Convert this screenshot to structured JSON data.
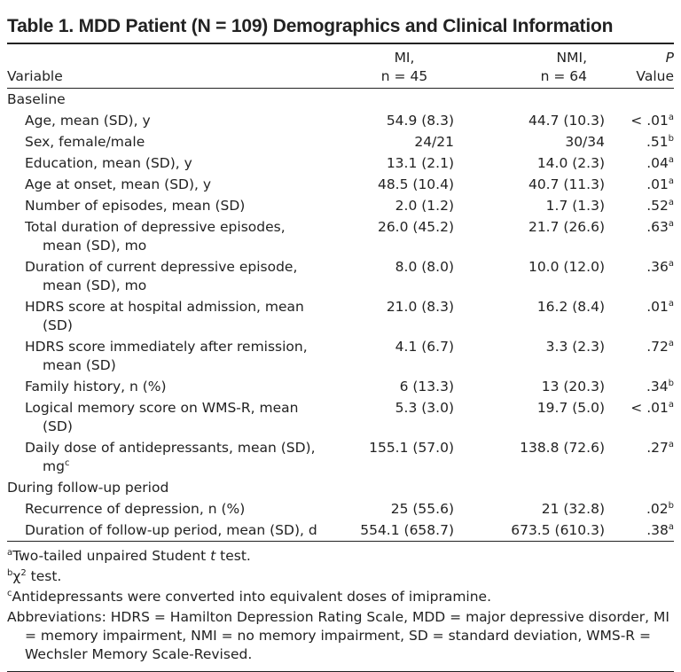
{
  "table": {
    "title": "Table 1. MDD Patient (N = 109) Demographics and Clinical Information",
    "header": {
      "variable": "Variable",
      "columns": [
        [
          "MI,",
          "n = 45"
        ],
        [
          "NMI,",
          "n = 64"
        ],
        [
          "P",
          "Value"
        ]
      ]
    },
    "sections": [
      {
        "label": "Baseline",
        "rows": [
          {
            "variable": "Age, mean (SD), y",
            "mi": "54.9 (8.3)",
            "nmi": "44.7 (10.3)",
            "p": "< .01",
            "p_note": "a"
          },
          {
            "variable": "Sex, female/male",
            "mi": "24/21",
            "nmi": "30/34",
            "p": ".51",
            "p_note": "b"
          },
          {
            "variable": "Education, mean (SD), y",
            "mi": "13.1 (2.1)",
            "nmi": "14.0 (2.3)",
            "p": ".04",
            "p_note": "a"
          },
          {
            "variable": "Age at onset, mean (SD), y",
            "mi": "48.5 (10.4)",
            "nmi": "40.7 (11.3)",
            "p": ".01",
            "p_note": "a"
          },
          {
            "variable": "Number of episodes, mean (SD)",
            "mi": "2.0 (1.2)",
            "nmi": "1.7 (1.3)",
            "p": ".52",
            "p_note": "a"
          },
          {
            "variable": "Total duration of depressive episodes, mean (SD), mo",
            "mi": "26.0 (45.2)",
            "nmi": "21.7 (26.6)",
            "p": ".63",
            "p_note": "a"
          },
          {
            "variable": "Duration of current depressive episode, mean (SD), mo",
            "mi": "8.0 (8.0)",
            "nmi": "10.0 (12.0)",
            "p": ".36",
            "p_note": "a"
          },
          {
            "variable": "HDRS score at hospital admission, mean (SD)",
            "mi": "21.0 (8.3)",
            "nmi": "16.2 (8.4)",
            "p": ".01",
            "p_note": "a"
          },
          {
            "variable": "HDRS score immediately after remission, mean (SD)",
            "mi": "4.1 (6.7)",
            "nmi": "3.3 (2.3)",
            "p": ".72",
            "p_note": "a"
          },
          {
            "variable": "Family history, n (%)",
            "mi": "6 (13.3)",
            "nmi": "13 (20.3)",
            "p": ".34",
            "p_note": "b"
          },
          {
            "variable": "Logical memory score on WMS-R, mean (SD)",
            "mi": "5.3 (3.0)",
            "nmi": "19.7 (5.0)",
            "p": "< .01",
            "p_note": "a"
          },
          {
            "variable": "Daily dose of antidepressants, mean (SD), mg",
            "variable_note": "c",
            "mi": "155.1 (57.0)",
            "nmi": "138.8 (72.6)",
            "p": ".27",
            "p_note": "a"
          }
        ]
      },
      {
        "label": "During follow-up period",
        "rows": [
          {
            "variable": "Recurrence of depression, n (%)",
            "mi": "25 (55.6)",
            "nmi": "21 (32.8)",
            "p": ".02",
            "p_note": "b"
          },
          {
            "variable": "Duration of follow-up period, mean (SD), d",
            "mi": "554.1 (658.7)",
            "nmi": "673.5 (610.3)",
            "p": ".38",
            "p_note": "a"
          }
        ]
      }
    ],
    "notes": [
      {
        "mark": "a",
        "text": [
          "Two-tailed unpaired Student ",
          "t",
          " test."
        ]
      },
      {
        "mark": "b",
        "text": [
          "χ",
          "2",
          " test."
        ]
      },
      {
        "mark": "c",
        "text": [
          "Antidepressants were converted into equivalent doses of imipramine."
        ]
      }
    ],
    "abbreviations": "Abbreviations: HDRS = Hamilton Depression Rating Scale, MDD = major depressive disorder, MI = memory impairment, NMI = no memory impairment, SD = standard deviation, WMS-R = Wechsler Memory Scale-Revised."
  }
}
